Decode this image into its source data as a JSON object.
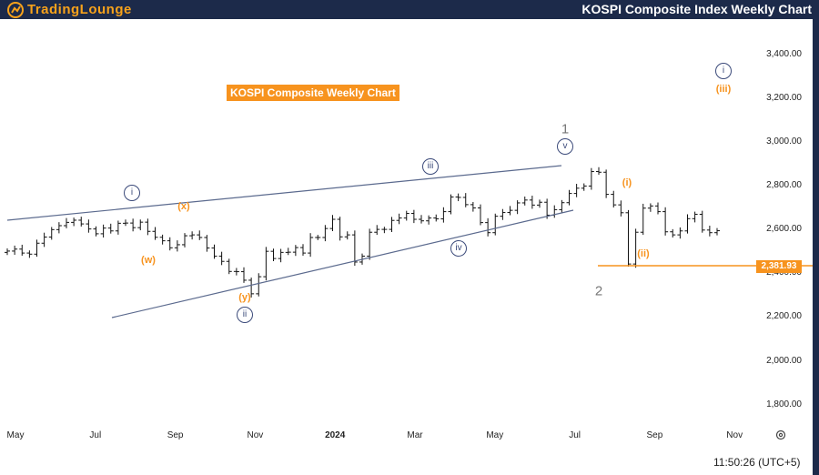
{
  "header": {
    "logo_text": "TradingLounge",
    "title": "KOSPI Composite Index Weekly Chart"
  },
  "chart_label": "KOSPI Composite Weekly Chart",
  "price_badge": "2,381.93",
  "time_display": "11:50:26 (UTC+5)",
  "colors": {
    "navy": "#1c2a4a",
    "orange": "#f7931e",
    "wave": "#3b4a7a"
  },
  "wave_labels": {
    "i_left": "i",
    "ii": "ii",
    "iii": "iii",
    "iv": "iv",
    "v": "v",
    "w": "(w)",
    "x": "(x)",
    "y": "(y)",
    "one": "1",
    "two": "2",
    "i_orange": "(i)",
    "ii_orange": "(ii)",
    "i_right": "i",
    "iii_orange": "(iii)"
  },
  "chart_data": {
    "type": "ohlc",
    "title": "KOSPI Composite Weekly Chart",
    "ylim": [
      1620,
      3560
    ],
    "yticks": [
      "3,400.00",
      "3,200.00",
      "3,000.00",
      "2,800.00",
      "2,600.00",
      "2,400.00",
      "2,200.00",
      "2,000.00",
      "1,800.00"
    ],
    "ytick_values": [
      3400,
      3200,
      3000,
      2800,
      2600,
      2400,
      2200,
      2000,
      1800
    ],
    "xticks": [
      "May",
      "Jul",
      "Sep",
      "Nov",
      "2024",
      "Mar",
      "May",
      "Jul",
      "Sep",
      "Nov"
    ],
    "closes": [
      2501,
      2510,
      2492,
      2487,
      2537,
      2565,
      2599,
      2617,
      2632,
      2642,
      2625,
      2602,
      2580,
      2606,
      2593,
      2628,
      2629,
      2608,
      2633,
      2591,
      2564,
      2548,
      2516,
      2530,
      2571,
      2575,
      2563,
      2515,
      2478,
      2454,
      2408,
      2407,
      2368,
      2306,
      2384,
      2500,
      2467,
      2495,
      2496,
      2517,
      2492,
      2563,
      2563,
      2604,
      2646,
      2566,
      2575,
      2451,
      2478,
      2587,
      2600,
      2600,
      2641,
      2652,
      2673,
      2646,
      2639,
      2652,
      2648,
      2681,
      2748,
      2746,
      2713,
      2698,
      2631,
      2585,
      2660,
      2677,
      2687,
      2721,
      2734,
      2711,
      2724,
      2665,
      2690,
      2722,
      2764,
      2788,
      2798,
      2864,
      2861,
      2760,
      2712,
      2676,
      2442,
      2587,
      2697,
      2707,
      2681,
      2589,
      2575,
      2593,
      2649,
      2669,
      2597,
      2585,
      2594
    ]
  }
}
